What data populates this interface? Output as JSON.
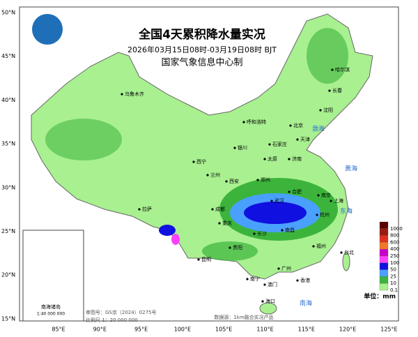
{
  "header": {
    "title": "全国4天累积降水量实况",
    "subtitle": "2026年03月15日08时-03月19日08时 BJT",
    "producer": "国家气象信息中心制"
  },
  "axes": {
    "lat_labels": [
      "50°N",
      "45°N",
      "40°N",
      "35°N",
      "30°N",
      "25°N",
      "20°N",
      "15°N"
    ],
    "lon_labels": [
      "85°E",
      "90°E",
      "95°E",
      "100°E",
      "105°E",
      "110°E",
      "115°E",
      "120°E",
      "125°E"
    ]
  },
  "legend": {
    "unit": "单位：mm",
    "items": [
      {
        "label": "1000",
        "color": "#5a0000"
      },
      {
        "label": "800",
        "color": "#9b1b0e"
      },
      {
        "label": "600",
        "color": "#e0301e"
      },
      {
        "label": "400",
        "color": "#f07828"
      },
      {
        "label": "250",
        "color": "#c800c8"
      },
      {
        "label": "100",
        "color": "#ff40ff"
      },
      {
        "label": "50",
        "color": "#1010e0"
      },
      {
        "label": "25",
        "color": "#4aa0ff"
      },
      {
        "label": "10",
        "color": "#3cb43c"
      },
      {
        "label": "0.1",
        "color": "#a8f090"
      }
    ]
  },
  "cities": [
    "乌鲁木齐",
    "哈尔滨",
    "长春",
    "沈阳",
    "呼和浩特",
    "北京",
    "天津",
    "石家庄",
    "银川",
    "太原",
    "济南",
    "西宁",
    "兰州",
    "西安",
    "郑州",
    "合肥",
    "南京",
    "上海",
    "武汉",
    "杭州",
    "成都",
    "重庆",
    "长沙",
    "南昌",
    "福州",
    "拉萨",
    "贵阳",
    "昆明",
    "南宁",
    "广州",
    "台北",
    "香港",
    "澳门",
    "海口"
  ],
  "seas": [
    "渤海",
    "黄海",
    "东海",
    "南海"
  ],
  "inset": {
    "title": "南海诸岛",
    "scale": "1:40 000 000"
  },
  "footer": {
    "approval": "审图号：GS京（2024）0275号",
    "scale": "比例尺 1：20 000 000",
    "source": "数据源：1km融合实况产品"
  }
}
